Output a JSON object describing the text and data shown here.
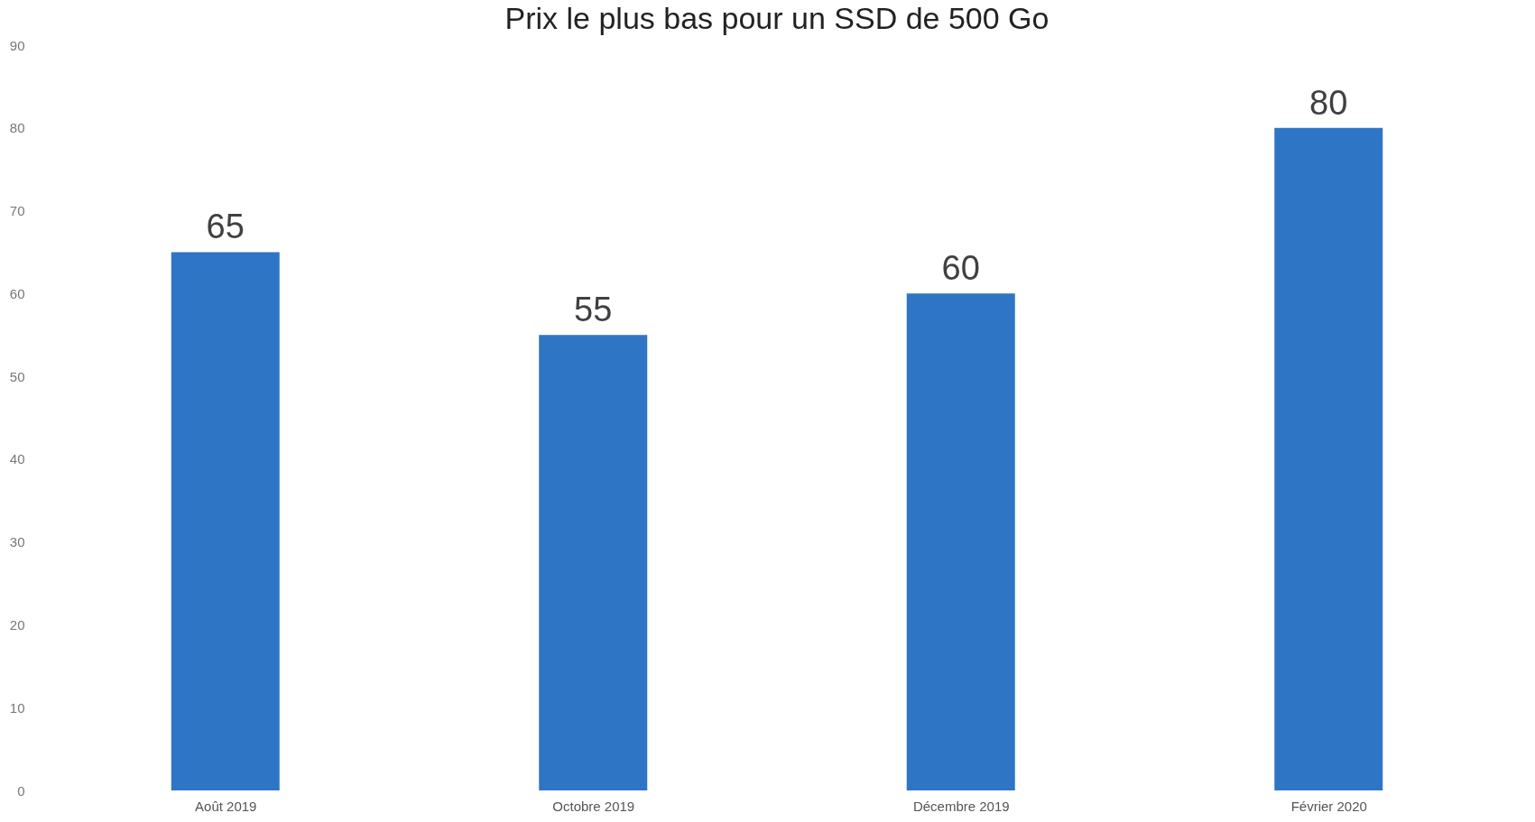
{
  "chart_data": {
    "type": "bar",
    "title": "Prix le plus bas pour un SSD de 500 Go",
    "categories": [
      "Août 2019",
      "Octobre 2019",
      "Décembre 2019",
      "Février 2020"
    ],
    "values": [
      65,
      55,
      60,
      80
    ],
    "color": "#2e75c6",
    "ylim": [
      0,
      90
    ],
    "yticks": [
      0,
      10,
      20,
      30,
      40,
      50,
      60,
      70,
      80,
      90
    ],
    "grid": false,
    "data_labels": true
  }
}
